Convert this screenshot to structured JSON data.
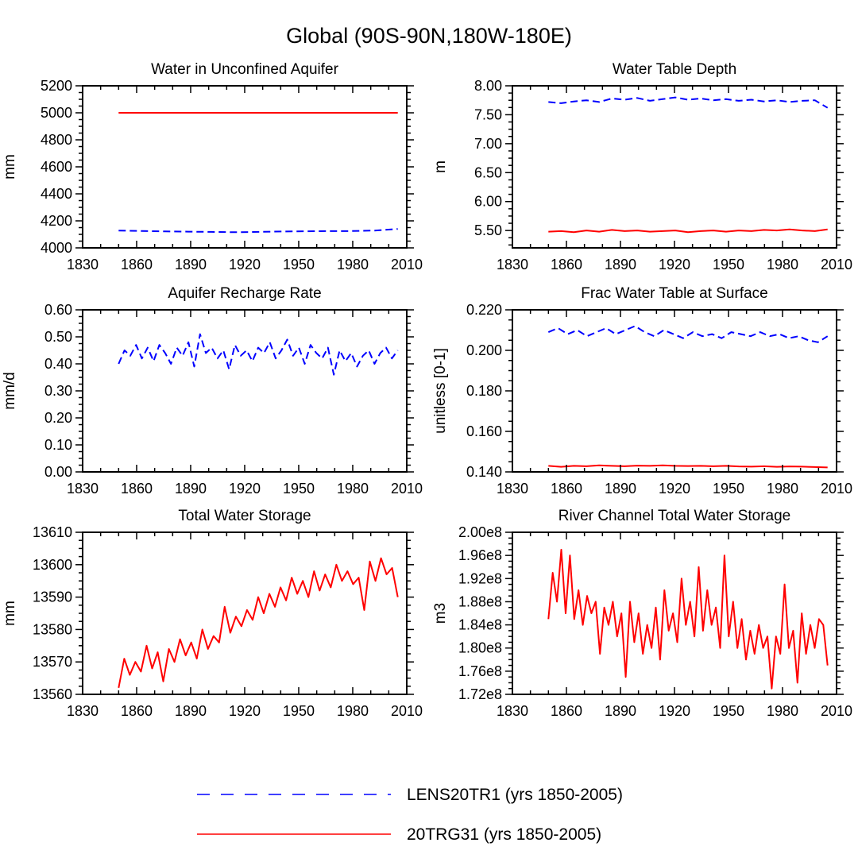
{
  "figure_title": "Global (90S-90N,180W-180E)",
  "legend": [
    {
      "label": "LENS20TR1 (yrs 1850-2005)",
      "color": "#0000ff",
      "dashed": true
    },
    {
      "label": "20TRG31 (yrs 1850-2005)",
      "color": "#ff0000",
      "dashed": false
    }
  ],
  "chart_data": [
    {
      "type": "line",
      "title": "Water in Unconfined Aquifer",
      "ylabel": "mm",
      "xlim": [
        1830,
        2010
      ],
      "xticks": [
        1830,
        1860,
        1890,
        1920,
        1950,
        1980,
        2010
      ],
      "ylim": [
        4000,
        5200
      ],
      "yticks": [
        4000,
        4200,
        4400,
        4600,
        4800,
        5000,
        5200
      ],
      "ytick_labels": [
        "4000",
        "4200",
        "4400",
        "4600",
        "4800",
        "5000",
        "5200"
      ],
      "series": [
        {
          "name": "LENS20TR1",
          "color": "#0000ff",
          "dashed": true,
          "x_start": 1850,
          "x_end": 2005,
          "values": [
            4128,
            4125,
            4122,
            4120,
            4118,
            4116,
            4118,
            4121,
            4123,
            4124,
            4125,
            4128,
            4140
          ]
        },
        {
          "name": "20TRG31",
          "color": "#ff0000",
          "dashed": false,
          "x_start": 1850,
          "x_end": 2005,
          "values": [
            5000,
            5000
          ]
        }
      ]
    },
    {
      "type": "line",
      "title": "Water Table Depth",
      "ylabel": "m",
      "xlim": [
        1830,
        2010
      ],
      "xticks": [
        1830,
        1860,
        1890,
        1920,
        1950,
        1980,
        2010
      ],
      "ylim": [
        5.2,
        8.0
      ],
      "yticks": [
        5.5,
        6.0,
        6.5,
        7.0,
        7.5,
        8.0
      ],
      "ytick_labels": [
        "5.50",
        "6.00",
        "6.50",
        "7.00",
        "7.50",
        "8.00"
      ],
      "series": [
        {
          "name": "LENS20TR1",
          "color": "#0000ff",
          "dashed": true,
          "x_start": 1850,
          "x_end": 2005,
          "values": [
            7.72,
            7.7,
            7.73,
            7.75,
            7.72,
            7.78,
            7.76,
            7.79,
            7.74,
            7.77,
            7.8,
            7.76,
            7.78,
            7.75,
            7.77,
            7.74,
            7.76,
            7.73,
            7.75,
            7.72,
            7.74,
            7.75,
            7.62
          ]
        },
        {
          "name": "20TRG31",
          "color": "#ff0000",
          "dashed": false,
          "x_start": 1850,
          "x_end": 2005,
          "values": [
            5.48,
            5.49,
            5.47,
            5.5,
            5.48,
            5.51,
            5.49,
            5.5,
            5.48,
            5.49,
            5.5,
            5.47,
            5.49,
            5.5,
            5.48,
            5.5,
            5.49,
            5.51,
            5.5,
            5.52,
            5.5,
            5.49,
            5.52
          ]
        }
      ]
    },
    {
      "type": "line",
      "title": "Aquifer Recharge Rate",
      "ylabel": "mm/d",
      "xlim": [
        1830,
        2010
      ],
      "xticks": [
        1830,
        1860,
        1890,
        1920,
        1950,
        1980,
        2010
      ],
      "ylim": [
        0,
        0.6
      ],
      "yticks": [
        0,
        0.1,
        0.2,
        0.3,
        0.4,
        0.5,
        0.6
      ],
      "ytick_labels": [
        "0.00",
        "0.10",
        "0.20",
        "0.30",
        "0.40",
        "0.50",
        "0.60"
      ],
      "series": [
        {
          "name": "LENS20TR1",
          "color": "#0000ff",
          "dashed": true,
          "x_start": 1850,
          "x_end": 2005,
          "values": [
            0.4,
            0.45,
            0.43,
            0.47,
            0.42,
            0.46,
            0.41,
            0.47,
            0.44,
            0.4,
            0.46,
            0.43,
            0.48,
            0.39,
            0.51,
            0.44,
            0.46,
            0.42,
            0.45,
            0.38,
            0.47,
            0.43,
            0.45,
            0.41,
            0.46,
            0.44,
            0.48,
            0.42,
            0.45,
            0.49,
            0.43,
            0.46,
            0.4,
            0.47,
            0.44,
            0.42,
            0.46,
            0.36,
            0.45,
            0.41,
            0.44,
            0.39,
            0.43,
            0.45,
            0.4,
            0.44,
            0.46,
            0.42,
            0.45
          ]
        },
        {
          "name": "20TRG31",
          "color": "#ff0000",
          "dashed": false,
          "x_start": 1850,
          "x_end": 2005,
          "values": [
            0.0,
            0.0
          ]
        }
      ]
    },
    {
      "type": "line",
      "title": "Frac Water Table at Surface",
      "ylabel": "unitless [0-1]",
      "xlim": [
        1830,
        2010
      ],
      "xticks": [
        1830,
        1860,
        1890,
        1920,
        1950,
        1980,
        2010
      ],
      "ylim": [
        0.14,
        0.22
      ],
      "yticks": [
        0.14,
        0.16,
        0.18,
        0.2,
        0.22
      ],
      "ytick_labels": [
        "0.140",
        "0.160",
        "0.180",
        "0.200",
        "0.220"
      ],
      "series": [
        {
          "name": "LENS20TR1",
          "color": "#0000ff",
          "dashed": true,
          "x_start": 1850,
          "x_end": 2005,
          "values": [
            0.209,
            0.211,
            0.208,
            0.21,
            0.207,
            0.209,
            0.211,
            0.208,
            0.21,
            0.212,
            0.209,
            0.207,
            0.21,
            0.208,
            0.206,
            0.209,
            0.207,
            0.208,
            0.206,
            0.209,
            0.208,
            0.207,
            0.209,
            0.207,
            0.208,
            0.206,
            0.207,
            0.205,
            0.204,
            0.207
          ]
        },
        {
          "name": "20TRG31",
          "color": "#ff0000",
          "dashed": false,
          "x_start": 1850,
          "x_end": 2005,
          "values": [
            0.143,
            0.1425,
            0.143,
            0.1428,
            0.1432,
            0.143,
            0.1428,
            0.1431,
            0.143,
            0.1432,
            0.143,
            0.1429,
            0.143,
            0.1428,
            0.143,
            0.1427,
            0.1426,
            0.1428,
            0.1425,
            0.1427,
            0.1426,
            0.1424,
            0.1422
          ]
        }
      ]
    },
    {
      "type": "line",
      "title": "Total Water Storage",
      "ylabel": "mm",
      "xlim": [
        1830,
        2010
      ],
      "xticks": [
        1830,
        1860,
        1890,
        1920,
        1950,
        1980,
        2010
      ],
      "ylim": [
        13560,
        13610
      ],
      "yticks": [
        13560,
        13570,
        13580,
        13590,
        13600,
        13610
      ],
      "ytick_labels": [
        "13560",
        "13570",
        "13580",
        "13590",
        "13600",
        "13610"
      ],
      "series": [
        {
          "name": "20TRG31",
          "color": "#ff0000",
          "dashed": false,
          "x_start": 1850,
          "x_end": 2005,
          "values": [
            13562,
            13571,
            13566,
            13570,
            13567,
            13575,
            13568,
            13573,
            13564,
            13574,
            13570,
            13577,
            13572,
            13576,
            13571,
            13580,
            13574,
            13578,
            13576,
            13587,
            13579,
            13584,
            13581,
            13586,
            13583,
            13590,
            13585,
            13591,
            13587,
            13593,
            13589,
            13596,
            13591,
            13595,
            13590,
            13598,
            13592,
            13597,
            13593,
            13600,
            13595,
            13598,
            13594,
            13596,
            13586,
            13601,
            13595,
            13602,
            13597,
            13599,
            13590
          ]
        }
      ]
    },
    {
      "type": "line",
      "title": "River Channel Total Water Storage",
      "ylabel": "m3",
      "xlim": [
        1830,
        2010
      ],
      "xticks": [
        1830,
        1860,
        1890,
        1920,
        1950,
        1980,
        2010
      ],
      "ylim": [
        172000000.0,
        200000000.0
      ],
      "yticks": [
        172000000.0,
        176000000.0,
        180000000.0,
        184000000.0,
        188000000.0,
        192000000.0,
        196000000.0,
        200000000.0
      ],
      "ytick_labels": [
        "1.72e8",
        "1.76e8",
        "1.80e8",
        "1.84e8",
        "1.88e8",
        "1.92e8",
        "1.96e8",
        "2.00e8"
      ],
      "series": [
        {
          "name": "20TRG31",
          "color": "#ff0000",
          "dashed": false,
          "x_start": 1850,
          "x_end": 2005,
          "values": [
            185000000.0,
            193000000.0,
            188000000.0,
            197000000.0,
            186000000.0,
            196000000.0,
            185000000.0,
            190000000.0,
            184000000.0,
            189000000.0,
            186000000.0,
            188000000.0,
            179000000.0,
            187000000.0,
            184000000.0,
            188000000.0,
            182000000.0,
            186000000.0,
            175000000.0,
            188000000.0,
            181000000.0,
            186000000.0,
            179000000.0,
            184000000.0,
            180000000.0,
            187000000.0,
            178000000.0,
            190000000.0,
            183000000.0,
            186000000.0,
            181000000.0,
            192000000.0,
            184000000.0,
            188000000.0,
            182000000.0,
            194000000.0,
            183000000.0,
            190000000.0,
            184000000.0,
            187000000.0,
            180000000.0,
            196000000.0,
            182000000.0,
            188000000.0,
            180000000.0,
            185000000.0,
            178000000.0,
            183000000.0,
            179000000.0,
            184000000.0,
            180000000.0,
            182000000.0,
            173000000.0,
            182000000.0,
            179000000.0,
            191000000.0,
            180000000.0,
            183000000.0,
            174000000.0,
            186000000.0,
            179000000.0,
            184000000.0,
            180000000.0,
            185000000.0,
            184000000.0,
            177000000.0
          ]
        }
      ]
    }
  ]
}
